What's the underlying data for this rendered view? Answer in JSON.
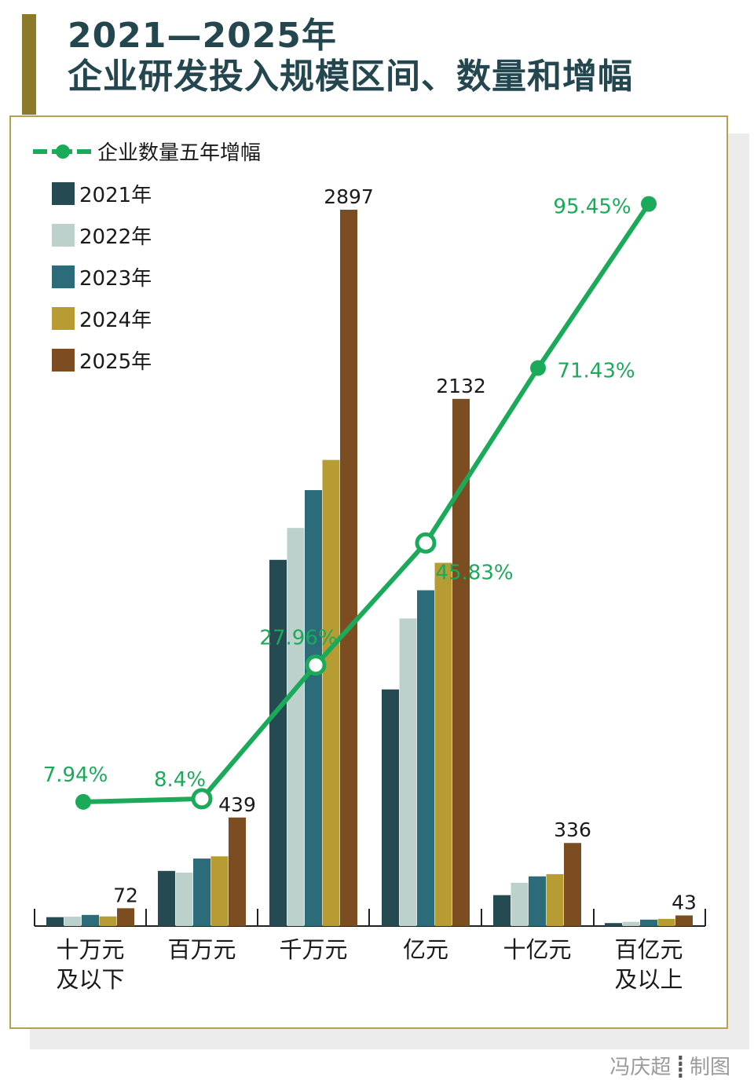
{
  "title": {
    "line1": "2021—2025年",
    "line2": "企业研发投入规模区间、数量和增幅"
  },
  "credit": {
    "author": "冯庆超",
    "separator": "┋",
    "role": "制图"
  },
  "colors": {
    "title": "#24464f",
    "accent": "#8c7a2a",
    "frame": "#b3a24e",
    "line": "#1aaa5a",
    "series": [
      "#264a52",
      "#bcd0cc",
      "#2b6b7a",
      "#b79c33",
      "#7d4d22"
    ]
  },
  "chart_data": {
    "type": "bar",
    "categories": [
      [
        "十万元",
        "及以下"
      ],
      [
        "百万元"
      ],
      [
        "千万元"
      ],
      [
        "亿元"
      ],
      [
        "十亿元"
      ],
      [
        "百亿元",
        "及以上"
      ]
    ],
    "series": [
      {
        "name": "2021年",
        "values": [
          36,
          223,
          1481,
          957,
          125,
          12
        ]
      },
      {
        "name": "2022年",
        "values": [
          38,
          216,
          1610,
          1244,
          175,
          17
        ]
      },
      {
        "name": "2023年",
        "values": [
          45,
          273,
          1763,
          1358,
          201,
          26
        ]
      },
      {
        "name": "2024年",
        "values": [
          39,
          282,
          1885,
          1469,
          210,
          29
        ]
      },
      {
        "name": "2025年",
        "values": [
          72,
          439,
          2897,
          2132,
          336,
          43
        ]
      }
    ],
    "value_labels": [
      "72",
      "439",
      "2897",
      "2132",
      "336",
      "43"
    ],
    "line_series": {
      "name": "企业数量五年增幅",
      "values": [
        7.94,
        8.4,
        27.96,
        45.83,
        71.43,
        95.45
      ],
      "labels": [
        "7.94%",
        "8.4%",
        "27.96%",
        "45.83%",
        "71.43%",
        "95.45%"
      ]
    },
    "legend_position": "top-left",
    "grid": false
  }
}
